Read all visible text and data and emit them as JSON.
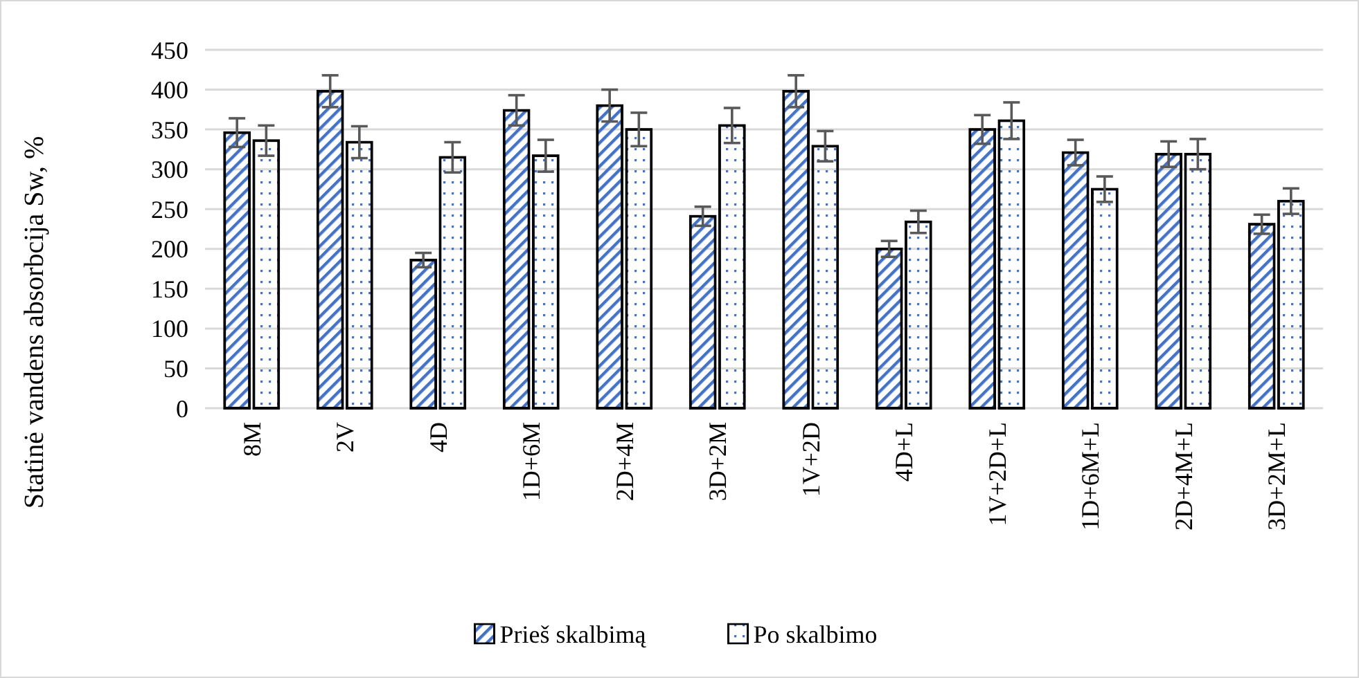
{
  "chart_data": {
    "type": "bar",
    "ylabel": "Statinė vandens absorbcija Sw, %",
    "categories": [
      "8M",
      "2V",
      "4D",
      "1D+6M",
      "2D+4M",
      "3D+2M",
      "1V+2D",
      "4D+L",
      "1V+2D+L",
      "1D+6M+L",
      "2D+4M+L",
      "3D+2M+L"
    ],
    "series": [
      {
        "name": "Prieš skalbimą",
        "color": "#4472c4",
        "values": [
          346,
          398,
          186,
          374,
          380,
          241,
          398,
          200,
          350,
          321,
          319,
          231
        ],
        "errors": [
          18,
          20,
          9,
          19,
          20,
          12,
          20,
          10,
          18,
          16,
          16,
          12
        ]
      },
      {
        "name": "Po skalbimo",
        "color": "#4472c4",
        "values": [
          336,
          334,
          315,
          317,
          350,
          355,
          329,
          234,
          361,
          275,
          319,
          260
        ],
        "errors": [
          19,
          20,
          19,
          20,
          21,
          22,
          19,
          14,
          23,
          16,
          19,
          16
        ]
      }
    ],
    "ylim": [
      0,
      450
    ],
    "yticks": [
      0,
      50,
      100,
      150,
      200,
      250,
      300,
      350,
      400,
      450
    ],
    "grid": "y",
    "legend": "bottom"
  }
}
